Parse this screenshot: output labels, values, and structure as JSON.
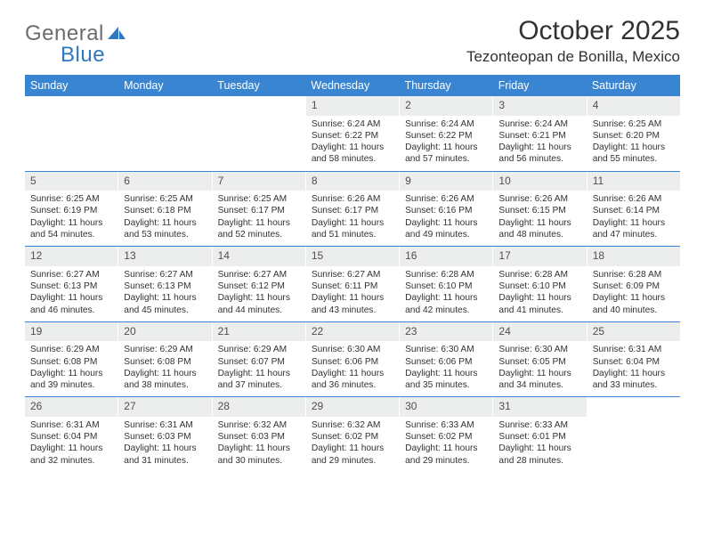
{
  "logo": {
    "word1": "General",
    "word2": "Blue"
  },
  "header": {
    "month_title": "October 2025",
    "location": "Tezonteopan de Bonilla, Mexico"
  },
  "style": {
    "header_bg": "#3a85d1",
    "daynum_bg": "#eceded",
    "text_color": "#323232",
    "logo_gray": "#6c6c6c",
    "logo_blue": "#2e78c0"
  },
  "weekdays": [
    "Sunday",
    "Monday",
    "Tuesday",
    "Wednesday",
    "Thursday",
    "Friday",
    "Saturday"
  ],
  "weeks": [
    [
      {
        "n": "",
        "sr": "",
        "ss": "",
        "dl": ""
      },
      {
        "n": "",
        "sr": "",
        "ss": "",
        "dl": ""
      },
      {
        "n": "",
        "sr": "",
        "ss": "",
        "dl": ""
      },
      {
        "n": "1",
        "sr": "Sunrise: 6:24 AM",
        "ss": "Sunset: 6:22 PM",
        "dl": "Daylight: 11 hours and 58 minutes."
      },
      {
        "n": "2",
        "sr": "Sunrise: 6:24 AM",
        "ss": "Sunset: 6:22 PM",
        "dl": "Daylight: 11 hours and 57 minutes."
      },
      {
        "n": "3",
        "sr": "Sunrise: 6:24 AM",
        "ss": "Sunset: 6:21 PM",
        "dl": "Daylight: 11 hours and 56 minutes."
      },
      {
        "n": "4",
        "sr": "Sunrise: 6:25 AM",
        "ss": "Sunset: 6:20 PM",
        "dl": "Daylight: 11 hours and 55 minutes."
      }
    ],
    [
      {
        "n": "5",
        "sr": "Sunrise: 6:25 AM",
        "ss": "Sunset: 6:19 PM",
        "dl": "Daylight: 11 hours and 54 minutes."
      },
      {
        "n": "6",
        "sr": "Sunrise: 6:25 AM",
        "ss": "Sunset: 6:18 PM",
        "dl": "Daylight: 11 hours and 53 minutes."
      },
      {
        "n": "7",
        "sr": "Sunrise: 6:25 AM",
        "ss": "Sunset: 6:17 PM",
        "dl": "Daylight: 11 hours and 52 minutes."
      },
      {
        "n": "8",
        "sr": "Sunrise: 6:26 AM",
        "ss": "Sunset: 6:17 PM",
        "dl": "Daylight: 11 hours and 51 minutes."
      },
      {
        "n": "9",
        "sr": "Sunrise: 6:26 AM",
        "ss": "Sunset: 6:16 PM",
        "dl": "Daylight: 11 hours and 49 minutes."
      },
      {
        "n": "10",
        "sr": "Sunrise: 6:26 AM",
        "ss": "Sunset: 6:15 PM",
        "dl": "Daylight: 11 hours and 48 minutes."
      },
      {
        "n": "11",
        "sr": "Sunrise: 6:26 AM",
        "ss": "Sunset: 6:14 PM",
        "dl": "Daylight: 11 hours and 47 minutes."
      }
    ],
    [
      {
        "n": "12",
        "sr": "Sunrise: 6:27 AM",
        "ss": "Sunset: 6:13 PM",
        "dl": "Daylight: 11 hours and 46 minutes."
      },
      {
        "n": "13",
        "sr": "Sunrise: 6:27 AM",
        "ss": "Sunset: 6:13 PM",
        "dl": "Daylight: 11 hours and 45 minutes."
      },
      {
        "n": "14",
        "sr": "Sunrise: 6:27 AM",
        "ss": "Sunset: 6:12 PM",
        "dl": "Daylight: 11 hours and 44 minutes."
      },
      {
        "n": "15",
        "sr": "Sunrise: 6:27 AM",
        "ss": "Sunset: 6:11 PM",
        "dl": "Daylight: 11 hours and 43 minutes."
      },
      {
        "n": "16",
        "sr": "Sunrise: 6:28 AM",
        "ss": "Sunset: 6:10 PM",
        "dl": "Daylight: 11 hours and 42 minutes."
      },
      {
        "n": "17",
        "sr": "Sunrise: 6:28 AM",
        "ss": "Sunset: 6:10 PM",
        "dl": "Daylight: 11 hours and 41 minutes."
      },
      {
        "n": "18",
        "sr": "Sunrise: 6:28 AM",
        "ss": "Sunset: 6:09 PM",
        "dl": "Daylight: 11 hours and 40 minutes."
      }
    ],
    [
      {
        "n": "19",
        "sr": "Sunrise: 6:29 AM",
        "ss": "Sunset: 6:08 PM",
        "dl": "Daylight: 11 hours and 39 minutes."
      },
      {
        "n": "20",
        "sr": "Sunrise: 6:29 AM",
        "ss": "Sunset: 6:08 PM",
        "dl": "Daylight: 11 hours and 38 minutes."
      },
      {
        "n": "21",
        "sr": "Sunrise: 6:29 AM",
        "ss": "Sunset: 6:07 PM",
        "dl": "Daylight: 11 hours and 37 minutes."
      },
      {
        "n": "22",
        "sr": "Sunrise: 6:30 AM",
        "ss": "Sunset: 6:06 PM",
        "dl": "Daylight: 11 hours and 36 minutes."
      },
      {
        "n": "23",
        "sr": "Sunrise: 6:30 AM",
        "ss": "Sunset: 6:06 PM",
        "dl": "Daylight: 11 hours and 35 minutes."
      },
      {
        "n": "24",
        "sr": "Sunrise: 6:30 AM",
        "ss": "Sunset: 6:05 PM",
        "dl": "Daylight: 11 hours and 34 minutes."
      },
      {
        "n": "25",
        "sr": "Sunrise: 6:31 AM",
        "ss": "Sunset: 6:04 PM",
        "dl": "Daylight: 11 hours and 33 minutes."
      }
    ],
    [
      {
        "n": "26",
        "sr": "Sunrise: 6:31 AM",
        "ss": "Sunset: 6:04 PM",
        "dl": "Daylight: 11 hours and 32 minutes."
      },
      {
        "n": "27",
        "sr": "Sunrise: 6:31 AM",
        "ss": "Sunset: 6:03 PM",
        "dl": "Daylight: 11 hours and 31 minutes."
      },
      {
        "n": "28",
        "sr": "Sunrise: 6:32 AM",
        "ss": "Sunset: 6:03 PM",
        "dl": "Daylight: 11 hours and 30 minutes."
      },
      {
        "n": "29",
        "sr": "Sunrise: 6:32 AM",
        "ss": "Sunset: 6:02 PM",
        "dl": "Daylight: 11 hours and 29 minutes."
      },
      {
        "n": "30",
        "sr": "Sunrise: 6:33 AM",
        "ss": "Sunset: 6:02 PM",
        "dl": "Daylight: 11 hours and 29 minutes."
      },
      {
        "n": "31",
        "sr": "Sunrise: 6:33 AM",
        "ss": "Sunset: 6:01 PM",
        "dl": "Daylight: 11 hours and 28 minutes."
      },
      {
        "n": "",
        "sr": "",
        "ss": "",
        "dl": ""
      }
    ]
  ]
}
